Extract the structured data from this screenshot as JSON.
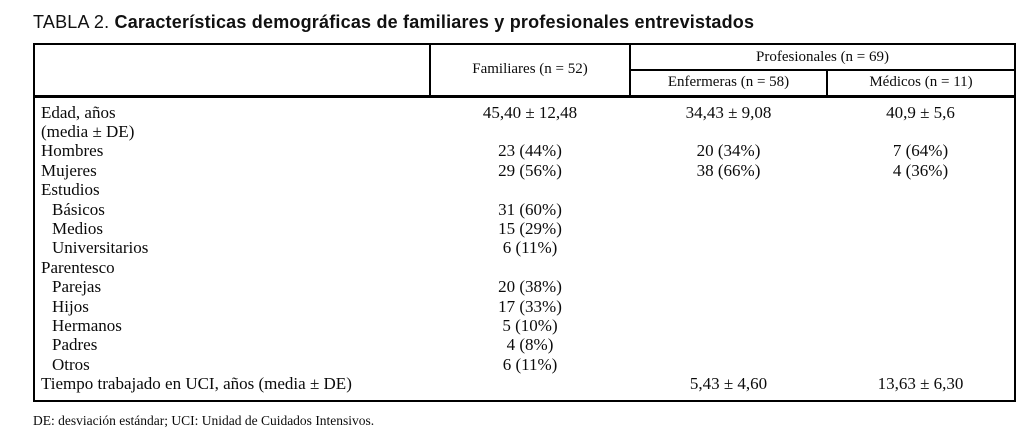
{
  "title": {
    "prefix": "TABLA 2.",
    "text": "Características demográficas de familiares y profesionales entrevistados"
  },
  "table": {
    "header": {
      "familiares": "Familiares (n = 52)",
      "profesionales": "Profesionales (n = 69)",
      "enfermeras": "Enfermeras (n = 58)",
      "medicos": "Médicos (n = 11)"
    },
    "rows": [
      {
        "label": "Edad, años\n(media ± DE)",
        "indent": false,
        "familiares": "45,40 ± 12,48",
        "enfermeras": "34,43 ± 9,08",
        "medicos": "40,9 ± 5,6"
      },
      {
        "label": "Hombres",
        "indent": false,
        "familiares": "23 (44%)",
        "enfermeras": "20 (34%)",
        "medicos": "7 (64%)"
      },
      {
        "label": "Mujeres",
        "indent": false,
        "familiares": "29 (56%)",
        "enfermeras": "38 (66%)",
        "medicos": "4 (36%)"
      },
      {
        "label": "Estudios",
        "indent": false,
        "familiares": "",
        "enfermeras": "",
        "medicos": ""
      },
      {
        "label": "Básicos",
        "indent": true,
        "familiares": "31 (60%)",
        "enfermeras": "",
        "medicos": ""
      },
      {
        "label": "Medios",
        "indent": true,
        "familiares": "15 (29%)",
        "enfermeras": "",
        "medicos": ""
      },
      {
        "label": "Universitarios",
        "indent": true,
        "familiares": "6 (11%)",
        "enfermeras": "",
        "medicos": ""
      },
      {
        "label": "Parentesco",
        "indent": false,
        "familiares": "",
        "enfermeras": "",
        "medicos": ""
      },
      {
        "label": "Parejas",
        "indent": true,
        "familiares": "20 (38%)",
        "enfermeras": "",
        "medicos": ""
      },
      {
        "label": "Hijos",
        "indent": true,
        "familiares": "17 (33%)",
        "enfermeras": "",
        "medicos": ""
      },
      {
        "label": "Hermanos",
        "indent": true,
        "familiares": "5 (10%)",
        "enfermeras": "",
        "medicos": ""
      },
      {
        "label": "Padres",
        "indent": true,
        "familiares": "4 (8%)",
        "enfermeras": "",
        "medicos": ""
      },
      {
        "label": "Otros",
        "indent": true,
        "familiares": "6 (11%)",
        "enfermeras": "",
        "medicos": ""
      },
      {
        "label": "Tiempo trabajado en UCI, años (media ± DE)",
        "indent": false,
        "familiares": "",
        "enfermeras": "5,43 ± 4,60",
        "medicos": "13,63 ± 6,30"
      }
    ]
  },
  "footnote": "DE: desviación estándar; UCI: Unidad de Cuidados Intensivos."
}
